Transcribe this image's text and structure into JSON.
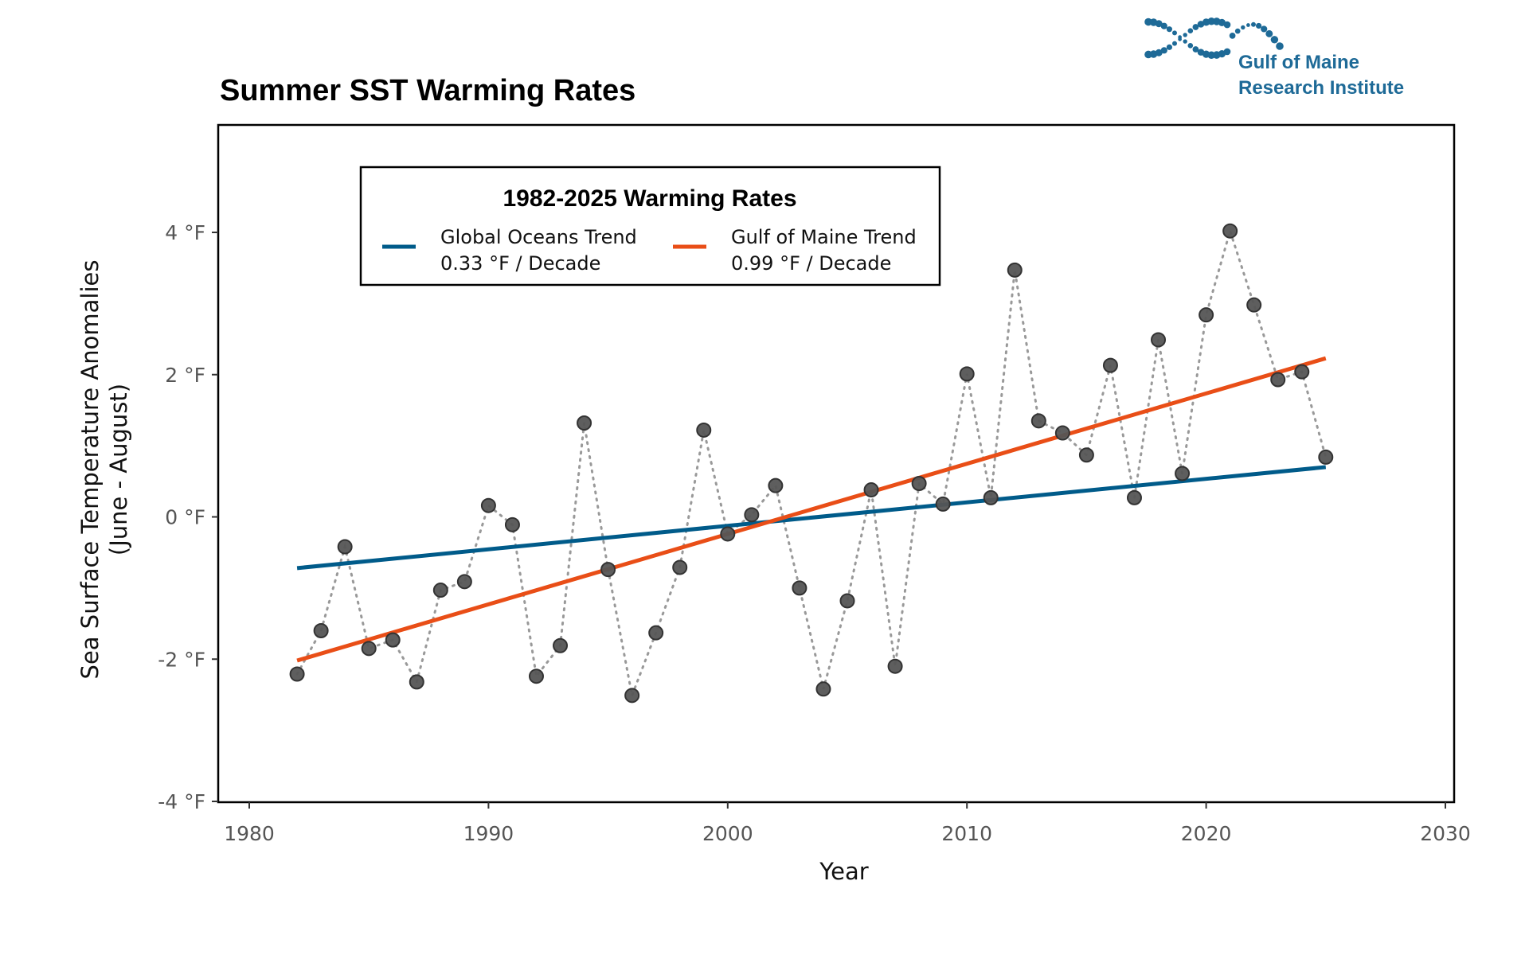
{
  "logo": {
    "line1": "Gulf of Maine",
    "line2": "Research Institute",
    "color": "#1E6A97"
  },
  "chart_data": {
    "type": "scatter",
    "title": "Summer SST Warming Rates",
    "xlabel": "Year",
    "ylabel_line1": "Sea Surface Temperature Anomalies",
    "ylabel_line2": "(June - August)",
    "xlim": [
      1980,
      2030
    ],
    "ylim": [
      -4,
      4
    ],
    "grid": false,
    "x_ticks": [
      1980,
      1990,
      2000,
      2010,
      2020,
      2030
    ],
    "x_tick_labels": [
      "1980",
      "1990",
      "2000",
      "2010",
      "2020",
      "2030"
    ],
    "y_ticks": [
      -4,
      -2,
      0,
      2,
      4
    ],
    "y_tick_labels": [
      "-4 °F",
      "-2 °F",
      "0 °F",
      "2 °F",
      "4 °F"
    ],
    "points_color": "#555555",
    "connector": "dotted",
    "x": [
      1982,
      1983,
      1984,
      1985,
      1986,
      1987,
      1988,
      1989,
      1990,
      1991,
      1992,
      1993,
      1994,
      1995,
      1996,
      1997,
      1998,
      1999,
      2000,
      2001,
      2002,
      2003,
      2004,
      2005,
      2006,
      2007,
      2008,
      2009,
      2010,
      2011,
      2012,
      2013,
      2014,
      2015,
      2016,
      2017,
      2018,
      2019,
      2020,
      2021,
      2022,
      2023,
      2024,
      2025
    ],
    "y": [
      -2.21,
      -1.6,
      -0.42,
      -1.85,
      -1.73,
      -2.32,
      -1.03,
      -0.91,
      0.16,
      -0.11,
      -2.24,
      -1.81,
      1.32,
      -0.74,
      -2.51,
      -1.63,
      -0.71,
      1.22,
      -0.24,
      0.03,
      0.44,
      -1.0,
      -2.42,
      -1.18,
      0.38,
      -2.1,
      0.47,
      0.18,
      2.01,
      0.27,
      3.47,
      1.35,
      1.18,
      0.87,
      2.13,
      0.27,
      2.49,
      0.61,
      2.84,
      4.02,
      2.98,
      1.93,
      2.04,
      0.84
    ],
    "trends": [
      {
        "name": "Global Oceans Trend",
        "rate_label": "0.33 °F / Decade",
        "color": "#005B8A",
        "x": [
          1982,
          2025
        ],
        "y": [
          -0.72,
          0.7
        ]
      },
      {
        "name": "Gulf of Maine Trend",
        "rate_label": "0.99 °F / Decade",
        "color": "#E94E17",
        "x": [
          1982,
          2025
        ],
        "y": [
          -2.02,
          2.23
        ]
      }
    ],
    "legend": {
      "title": "1982-2025 Warming Rates",
      "placement": "top-left"
    }
  }
}
